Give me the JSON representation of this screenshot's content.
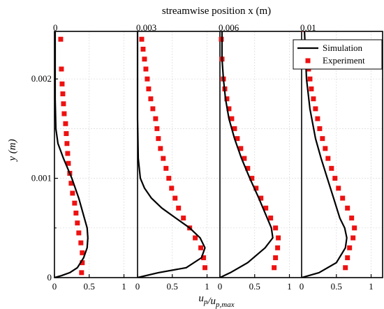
{
  "chart_data": {
    "type": "line",
    "title": "streamwise position x (m)",
    "xlabel": "u_p/u_p,max",
    "ylabel": "y (m)",
    "ylim": [
      0,
      0.0025
    ],
    "ytick_labels": [
      "0",
      "0.001",
      "0.002"
    ],
    "panel_xlim": [
      0,
      1
    ],
    "panel_xtick_labels": [
      "0",
      "0.5",
      "1"
    ],
    "legend": {
      "placement": "top-right",
      "entries": [
        {
          "name": "Simulation",
          "style": "solid-line",
          "color": "#000000"
        },
        {
          "name": "Experiment",
          "style": "square-marker",
          "color": "#ee1111"
        }
      ]
    },
    "grid": true,
    "panels": [
      {
        "position_label": "0",
        "simulation": {
          "u": [
            0.0,
            0.1,
            0.22,
            0.33,
            0.42,
            0.47,
            0.48,
            0.47,
            0.43,
            0.35,
            0.25,
            0.13,
            0.05,
            0.02,
            0.01,
            0.01,
            0.01
          ],
          "y": [
            0.0,
            2e-05,
            5e-05,
            0.0001,
            0.0002,
            0.0003,
            0.0004,
            0.0005,
            0.0006,
            0.0008,
            0.001,
            0.0012,
            0.00135,
            0.0015,
            0.0018,
            0.0022,
            0.0025
          ]
        },
        "experiment": {
          "u": [
            0.39,
            0.4,
            0.4,
            0.38,
            0.35,
            0.33,
            0.31,
            0.29,
            0.26,
            0.24,
            0.22,
            0.2,
            0.19,
            0.18,
            0.17,
            0.16,
            0.14,
            0.13,
            0.12,
            0.11,
            0.1,
            0.09
          ],
          "y": [
            5e-05,
            0.00015,
            0.00025,
            0.00035,
            0.00045,
            0.00055,
            0.00065,
            0.00075,
            0.00085,
            0.00095,
            0.00105,
            0.00115,
            0.00125,
            0.00135,
            0.00145,
            0.00155,
            0.00165,
            0.00175,
            0.00185,
            0.00195,
            0.0021,
            0.0024
          ]
        }
      },
      {
        "position_label": "0.003",
        "simulation": {
          "u": [
            0.0,
            0.3,
            0.7,
            0.92,
            0.97,
            0.9,
            0.75,
            0.55,
            0.35,
            0.2,
            0.1,
            0.04,
            0.01,
            0.0,
            0.0
          ],
          "y": [
            0.0,
            5e-05,
            0.0001,
            0.0002,
            0.0003,
            0.0004,
            0.0005,
            0.0006,
            0.0007,
            0.0008,
            0.0009,
            0.001,
            0.0012,
            0.0016,
            0.0025
          ]
        },
        "experiment": {
          "u": [
            0.97,
            0.95,
            0.91,
            0.83,
            0.75,
            0.66,
            0.59,
            0.54,
            0.49,
            0.45,
            0.41,
            0.37,
            0.33,
            0.3,
            0.28,
            0.26,
            0.22,
            0.19,
            0.16,
            0.14,
            0.12,
            0.1,
            0.08,
            0.06
          ],
          "y": [
            0.0001,
            0.0002,
            0.0003,
            0.0004,
            0.0005,
            0.0006,
            0.0007,
            0.0008,
            0.0009,
            0.001,
            0.0011,
            0.0012,
            0.0013,
            0.0014,
            0.0015,
            0.0016,
            0.0017,
            0.0018,
            0.0019,
            0.002,
            0.0021,
            0.0022,
            0.0023,
            0.0024
          ]
        }
      },
      {
        "position_label": "0.006",
        "simulation": {
          "u": [
            0.0,
            0.15,
            0.4,
            0.65,
            0.76,
            0.74,
            0.68,
            0.56,
            0.43,
            0.31,
            0.21,
            0.13,
            0.08,
            0.05,
            0.03,
            0.03
          ],
          "y": [
            0.0,
            5e-05,
            0.00015,
            0.0003,
            0.0004,
            0.0005,
            0.0006,
            0.0008,
            0.001,
            0.0012,
            0.0014,
            0.0016,
            0.0018,
            0.002,
            0.0022,
            0.0025
          ]
        },
        "experiment": {
          "u": [
            0.78,
            0.8,
            0.83,
            0.84,
            0.8,
            0.73,
            0.66,
            0.59,
            0.52,
            0.46,
            0.4,
            0.35,
            0.3,
            0.25,
            0.21,
            0.17,
            0.13,
            0.1,
            0.07,
            0.05,
            0.03,
            0.02
          ],
          "y": [
            0.0001,
            0.0002,
            0.0003,
            0.0004,
            0.0005,
            0.0006,
            0.0007,
            0.0008,
            0.0009,
            0.001,
            0.0011,
            0.0012,
            0.0013,
            0.0014,
            0.0015,
            0.0016,
            0.0017,
            0.0018,
            0.0019,
            0.002,
            0.0022,
            0.0024
          ]
        }
      },
      {
        "position_label": "0.01",
        "simulation": {
          "u": [
            0.0,
            0.25,
            0.5,
            0.63,
            0.65,
            0.62,
            0.55,
            0.46,
            0.37,
            0.28,
            0.2,
            0.12,
            0.07,
            0.04
          ],
          "y": [
            0.0,
            5e-05,
            0.00015,
            0.0003,
            0.0004,
            0.0005,
            0.0006,
            0.0008,
            0.001,
            0.0012,
            0.0014,
            0.0017,
            0.002,
            0.0025
          ]
        },
        "experiment": {
          "u": [
            0.63,
            0.66,
            0.69,
            0.74,
            0.76,
            0.72,
            0.66,
            0.59,
            0.53,
            0.48,
            0.43,
            0.38,
            0.34,
            0.3,
            0.26,
            0.23,
            0.2,
            0.17,
            0.14,
            0.12,
            0.1,
            0.06,
            0.03
          ],
          "y": [
            0.0001,
            0.0002,
            0.0003,
            0.0004,
            0.0005,
            0.0006,
            0.0007,
            0.0008,
            0.0009,
            0.001,
            0.0011,
            0.0012,
            0.0013,
            0.0014,
            0.0015,
            0.0016,
            0.0017,
            0.0018,
            0.0019,
            0.002,
            0.0021,
            0.0023,
            0.0025
          ]
        }
      }
    ]
  }
}
